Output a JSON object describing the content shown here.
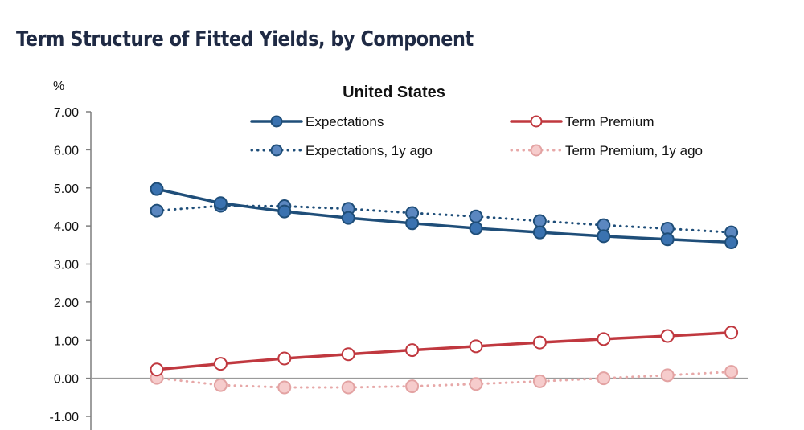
{
  "page": {
    "title": "Term Structure of Fitted Yields, by Component"
  },
  "chart_data": {
    "type": "line",
    "title": "United States",
    "ylabel": "%",
    "xlabel": "",
    "ylim": [
      -1,
      7
    ],
    "yticks": [
      7,
      6,
      5,
      4,
      3,
      2,
      1,
      0,
      -1
    ],
    "ytick_labels": [
      "7.00",
      "6.00",
      "5.00",
      "4.00",
      "3.00",
      "2.00",
      "1.00",
      "0.00",
      "-1.00"
    ],
    "x": [
      1,
      2,
      3,
      4,
      5,
      6,
      7,
      8,
      9,
      10
    ],
    "legend_position": "top",
    "series": [
      {
        "name": "Expectations",
        "color": "#1f4e79",
        "fill": "#3a72b0",
        "style": "solid",
        "values": [
          4.97,
          4.6,
          4.38,
          4.21,
          4.07,
          3.94,
          3.83,
          3.73,
          3.65,
          3.57
        ]
      },
      {
        "name": "Expectations, 1y ago",
        "color": "#1f4e79",
        "fill": "#5b87c0",
        "style": "dotted",
        "values": [
          4.4,
          4.53,
          4.52,
          4.45,
          4.34,
          4.25,
          4.13,
          4.02,
          3.93,
          3.83
        ]
      },
      {
        "name": "Term Premium",
        "color": "#c0383f",
        "fill": "#ffffff",
        "style": "solid",
        "values": [
          0.23,
          0.38,
          0.52,
          0.63,
          0.74,
          0.84,
          0.94,
          1.03,
          1.11,
          1.2
        ]
      },
      {
        "name": "Term Premium, 1y ago",
        "color": "#e7a8a8",
        "fill": "#f6cccc",
        "style": "dotted",
        "values": [
          0.01,
          -0.18,
          -0.24,
          -0.24,
          -0.21,
          -0.15,
          -0.08,
          0.0,
          0.08,
          0.17
        ]
      }
    ]
  }
}
